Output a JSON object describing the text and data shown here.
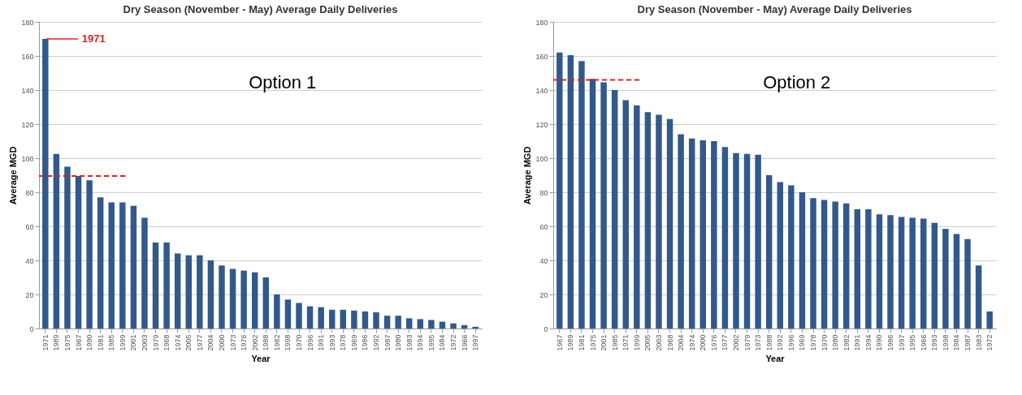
{
  "chart_data": [
    {
      "type": "bar",
      "title": "Dry Season (November - May) Average Daily Deliveries",
      "xlabel": "Year",
      "ylabel": "Average MGD",
      "categories": [
        "1971",
        "1989",
        "1975",
        "1967",
        "1990",
        "1981",
        "1985",
        "1999",
        "2001",
        "2003",
        "1979",
        "1968",
        "1974",
        "2005",
        "1977",
        "2004",
        "2000",
        "1973",
        "1976",
        "2002",
        "1988",
        "1982",
        "1998",
        "1970",
        "1996",
        "1991",
        "1993",
        "1978",
        "1969",
        "1986",
        "1992",
        "1987",
        "1980",
        "1983",
        "1994",
        "1995",
        "1984",
        "1972",
        "1966",
        "1997"
      ],
      "values": [
        170,
        102.5,
        95,
        89.5,
        87,
        77,
        74,
        74,
        72,
        65,
        50.5,
        50.5,
        44,
        43,
        43,
        40,
        37,
        35,
        34,
        33,
        30,
        20,
        17,
        15,
        13,
        12.5,
        11,
        11,
        10.5,
        10,
        9.5,
        7.5,
        7.5,
        6,
        5.5,
        5,
        4,
        3,
        2,
        1
      ],
      "color": "#31598c",
      "ylim": [
        0,
        180
      ],
      "yticks": [
        0,
        20,
        40,
        60,
        80,
        100,
        120,
        140,
        160,
        180
      ],
      "grid": "y",
      "ref_lines": [
        {
          "axis": "y",
          "value": 89.5,
          "color": "#e02020",
          "line_style": "dashed"
        }
      ],
      "annotations": [
        {
          "text": "1971",
          "x": "1971",
          "y": 170
        },
        "Option 1"
      ]
    },
    {
      "type": "bar",
      "title": "Dry Season (November - May) Average Daily Deliveries",
      "xlabel": "Year",
      "ylabel": "Average MGD",
      "categories": [
        "1967",
        "1989",
        "1981",
        "1975",
        "2001",
        "1985",
        "1971",
        "1999",
        "2005",
        "2003",
        "1968",
        "2004",
        "1974",
        "2000",
        "1976",
        "1977",
        "2002",
        "1979",
        "1973",
        "1988",
        "1992",
        "1996",
        "1969",
        "1978",
        "1970",
        "1980",
        "1982",
        "1991",
        "1994",
        "1990",
        "1986",
        "1997",
        "1995",
        "1966",
        "1993",
        "1998",
        "1984",
        "1987",
        "1983",
        "1972"
      ],
      "values": [
        162,
        160.5,
        157,
        146.5,
        144.5,
        140,
        134,
        131,
        127,
        125.5,
        123,
        114,
        111.5,
        110.5,
        110,
        106.5,
        103,
        102.5,
        102,
        90,
        86,
        84,
        80,
        76.5,
        75.5,
        74.5,
        73.5,
        70,
        70,
        67,
        66.5,
        65.5,
        65,
        64.5,
        62,
        58.5,
        55.5,
        52.5,
        37,
        10
      ],
      "color": "#31598c",
      "ylim": [
        0,
        180
      ],
      "yticks": [
        0,
        20,
        40,
        60,
        80,
        100,
        120,
        140,
        160,
        180
      ],
      "grid": "y",
      "ref_lines": [
        {
          "axis": "y",
          "value": 146,
          "color": "#e02020",
          "line_style": "dashed"
        }
      ],
      "annotations": [
        "Option 2"
      ]
    }
  ]
}
